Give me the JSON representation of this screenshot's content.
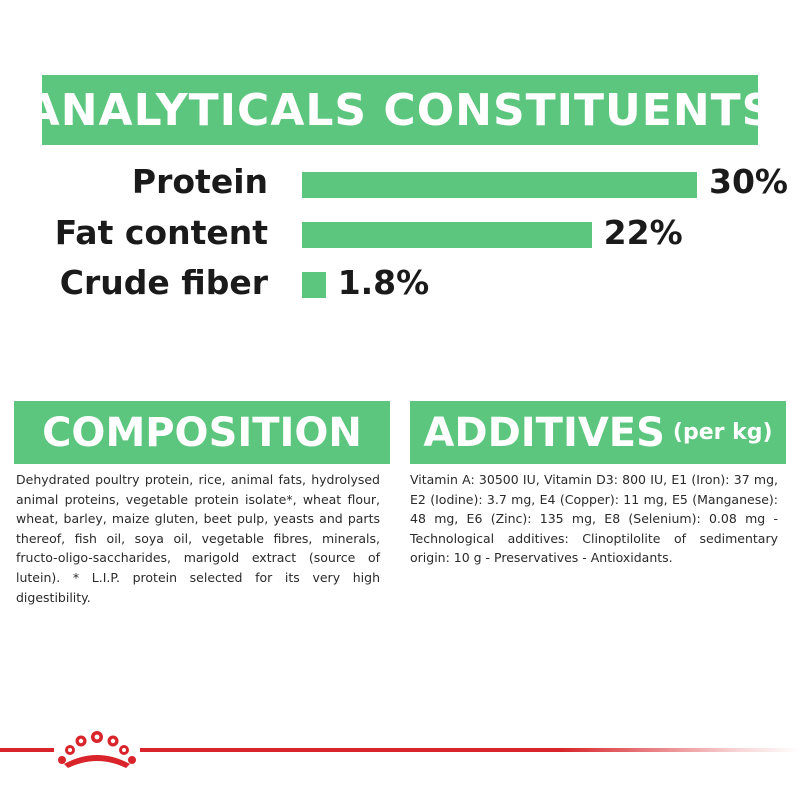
{
  "analytical": {
    "title": "ANALYTICALS CONSTITUENTS",
    "rows": [
      {
        "label": "Protein",
        "value_text": "30%",
        "value": 30
      },
      {
        "label": "Fat content",
        "value_text": "22%",
        "value": 22
      },
      {
        "label": "Crude fiber",
        "value_text": "1.8%",
        "value": 1.8
      }
    ]
  },
  "composition": {
    "title": "COMPOSITION",
    "text": "Dehydrated poultry protein, rice, animal fats, hydrolysed animal proteins, vegetable protein isolate*, wheat flour, wheat, barley, maize gluten, beet pulp, yeasts and parts thereof, fish oil, soya oil, vegetable fibres, minerals, fructo-oligo-saccharides, marigold extract (source of lutein). * L.I.P. protein selected for its very high digestibility."
  },
  "additives": {
    "title": "ADDITIVES",
    "subtitle": "(per kg)",
    "text": "Vitamin A: 30500 IU, Vitamin D3: 800 IU, E1 (Iron): 37 mg, E2 (Iodine): 3.7 mg, E4 (Copper): 11 mg, E5 (Manganese): 48 mg, E6 (Zinc): 135 mg, E8 (Selenium): 0.08 mg - Technological additives: Clinoptilolite of sedimentary origin: 10 g - Preservatives - Antioxidants."
  },
  "colors": {
    "accent": "#5cc67e",
    "brand_red": "#d8242a",
    "text": "#1a1a1a"
  },
  "footer": {
    "logo_icon": "royal-canin-crown-icon"
  }
}
